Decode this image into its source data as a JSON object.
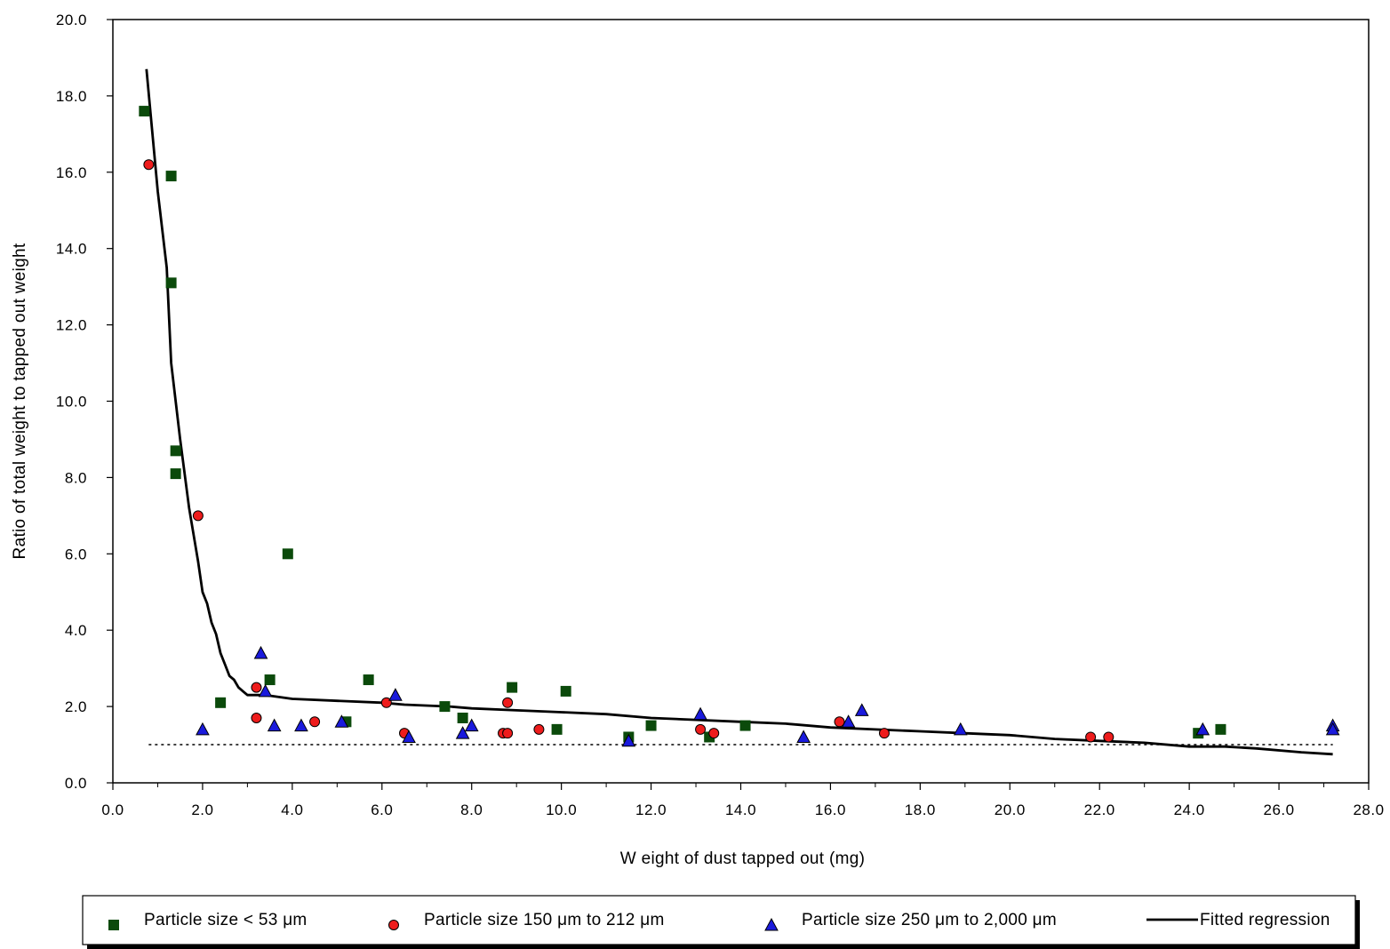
{
  "chart_data": {
    "type": "scatter",
    "title": "",
    "xlabel": "W eight of dust tapped out (mg)",
    "ylabel": "Ratio of total weight to tapped out weight",
    "xlim": [
      0,
      28
    ],
    "ylim": [
      0,
      20
    ],
    "x_ticks": [
      "0.0",
      "2.0",
      "4.0",
      "6.0",
      "8.0",
      "10.0",
      "12.0",
      "14.0",
      "16.0",
      "18.0",
      "20.0",
      "22.0",
      "24.0",
      "26.0",
      "28.0"
    ],
    "y_ticks": [
      "0.0",
      "2.0",
      "4.0",
      "6.0",
      "8.0",
      "10.0",
      "12.0",
      "14.0",
      "16.0",
      "18.0",
      "20.0"
    ],
    "x_tick_values": [
      0,
      2,
      4,
      6,
      8,
      10,
      12,
      14,
      16,
      18,
      20,
      22,
      24,
      26,
      28
    ],
    "y_tick_values": [
      0,
      2,
      4,
      6,
      8,
      10,
      12,
      14,
      16,
      18,
      20
    ],
    "grid": false,
    "legend_position": "bottom",
    "reference_line": {
      "y": 1.0,
      "style": "dotted",
      "x_range": [
        0.7,
        27.2
      ]
    },
    "series": [
      {
        "name": "Particle size < 53 μm",
        "marker": "square",
        "color": "#0b4a0b",
        "points": [
          [
            0.7,
            17.6
          ],
          [
            1.3,
            15.9
          ],
          [
            1.3,
            13.1
          ],
          [
            1.4,
            8.7
          ],
          [
            1.4,
            8.1
          ],
          [
            2.4,
            2.1
          ],
          [
            3.5,
            2.7
          ],
          [
            3.9,
            6.0
          ],
          [
            5.2,
            1.6
          ],
          [
            5.7,
            2.7
          ],
          [
            7.4,
            2.0
          ],
          [
            7.8,
            1.7
          ],
          [
            8.9,
            2.5
          ],
          [
            9.9,
            1.4
          ],
          [
            10.1,
            2.4
          ],
          [
            11.5,
            1.2
          ],
          [
            12.0,
            1.5
          ],
          [
            13.3,
            1.2
          ],
          [
            14.1,
            1.5
          ],
          [
            24.2,
            1.3
          ],
          [
            24.7,
            1.4
          ]
        ]
      },
      {
        "name": "Particle size 150 μm to 212 μm",
        "marker": "circle",
        "color": "#ee1c1c",
        "points": [
          [
            0.8,
            16.2
          ],
          [
            1.9,
            7.0
          ],
          [
            3.2,
            2.5
          ],
          [
            3.2,
            1.7
          ],
          [
            4.5,
            1.6
          ],
          [
            6.1,
            2.1
          ],
          [
            6.5,
            1.3
          ],
          [
            8.7,
            1.3
          ],
          [
            8.8,
            1.3
          ],
          [
            8.8,
            2.1
          ],
          [
            9.5,
            1.4
          ],
          [
            13.1,
            1.4
          ],
          [
            13.4,
            1.3
          ],
          [
            16.2,
            1.6
          ],
          [
            17.2,
            1.3
          ],
          [
            21.8,
            1.2
          ],
          [
            22.2,
            1.2
          ]
        ]
      },
      {
        "name": "Particle size 250 μm to 2,000 μm",
        "marker": "triangle",
        "color": "#1a1adc",
        "points": [
          [
            2.0,
            1.4
          ],
          [
            3.3,
            3.4
          ],
          [
            3.4,
            2.4
          ],
          [
            3.6,
            1.5
          ],
          [
            4.2,
            1.5
          ],
          [
            5.1,
            1.6
          ],
          [
            6.3,
            2.3
          ],
          [
            6.6,
            1.2
          ],
          [
            7.8,
            1.3
          ],
          [
            8.0,
            1.5
          ],
          [
            11.5,
            1.1
          ],
          [
            13.1,
            1.8
          ],
          [
            15.4,
            1.2
          ],
          [
            16.4,
            1.6
          ],
          [
            16.7,
            1.9
          ],
          [
            18.9,
            1.4
          ],
          [
            24.3,
            1.4
          ],
          [
            27.2,
            1.5
          ],
          [
            27.2,
            1.4
          ]
        ]
      },
      {
        "name": "Fitted regression",
        "marker": "line",
        "color": "#000000",
        "points": [
          [
            0.75,
            18.7
          ],
          [
            1.0,
            15.5
          ],
          [
            1.2,
            13.5
          ],
          [
            1.3,
            11.0
          ],
          [
            1.5,
            9.0
          ],
          [
            1.7,
            7.2
          ],
          [
            1.9,
            5.8
          ],
          [
            2.0,
            5.0
          ],
          [
            2.1,
            4.7
          ],
          [
            2.2,
            4.2
          ],
          [
            2.3,
            3.9
          ],
          [
            2.4,
            3.4
          ],
          [
            2.5,
            3.1
          ],
          [
            2.6,
            2.8
          ],
          [
            2.7,
            2.7
          ],
          [
            2.8,
            2.5
          ],
          [
            2.9,
            2.4
          ],
          [
            3.0,
            2.3
          ],
          [
            3.4,
            2.3
          ],
          [
            4.0,
            2.2
          ],
          [
            5.0,
            2.15
          ],
          [
            6.0,
            2.1
          ],
          [
            6.5,
            2.05
          ],
          [
            7.5,
            2.0
          ],
          [
            8.0,
            1.95
          ],
          [
            9.0,
            1.9
          ],
          [
            10.0,
            1.85
          ],
          [
            11.0,
            1.8
          ],
          [
            12.0,
            1.7
          ],
          [
            13.0,
            1.65
          ],
          [
            14.0,
            1.6
          ],
          [
            15.0,
            1.55
          ],
          [
            16.0,
            1.45
          ],
          [
            17.0,
            1.4
          ],
          [
            18.0,
            1.35
          ],
          [
            19.0,
            1.3
          ],
          [
            20.0,
            1.25
          ],
          [
            21.0,
            1.15
          ],
          [
            22.0,
            1.1
          ],
          [
            23.0,
            1.05
          ],
          [
            24.0,
            0.95
          ],
          [
            24.8,
            0.95
          ],
          [
            25.5,
            0.9
          ],
          [
            26.5,
            0.8
          ],
          [
            27.2,
            0.75
          ]
        ]
      }
    ]
  }
}
